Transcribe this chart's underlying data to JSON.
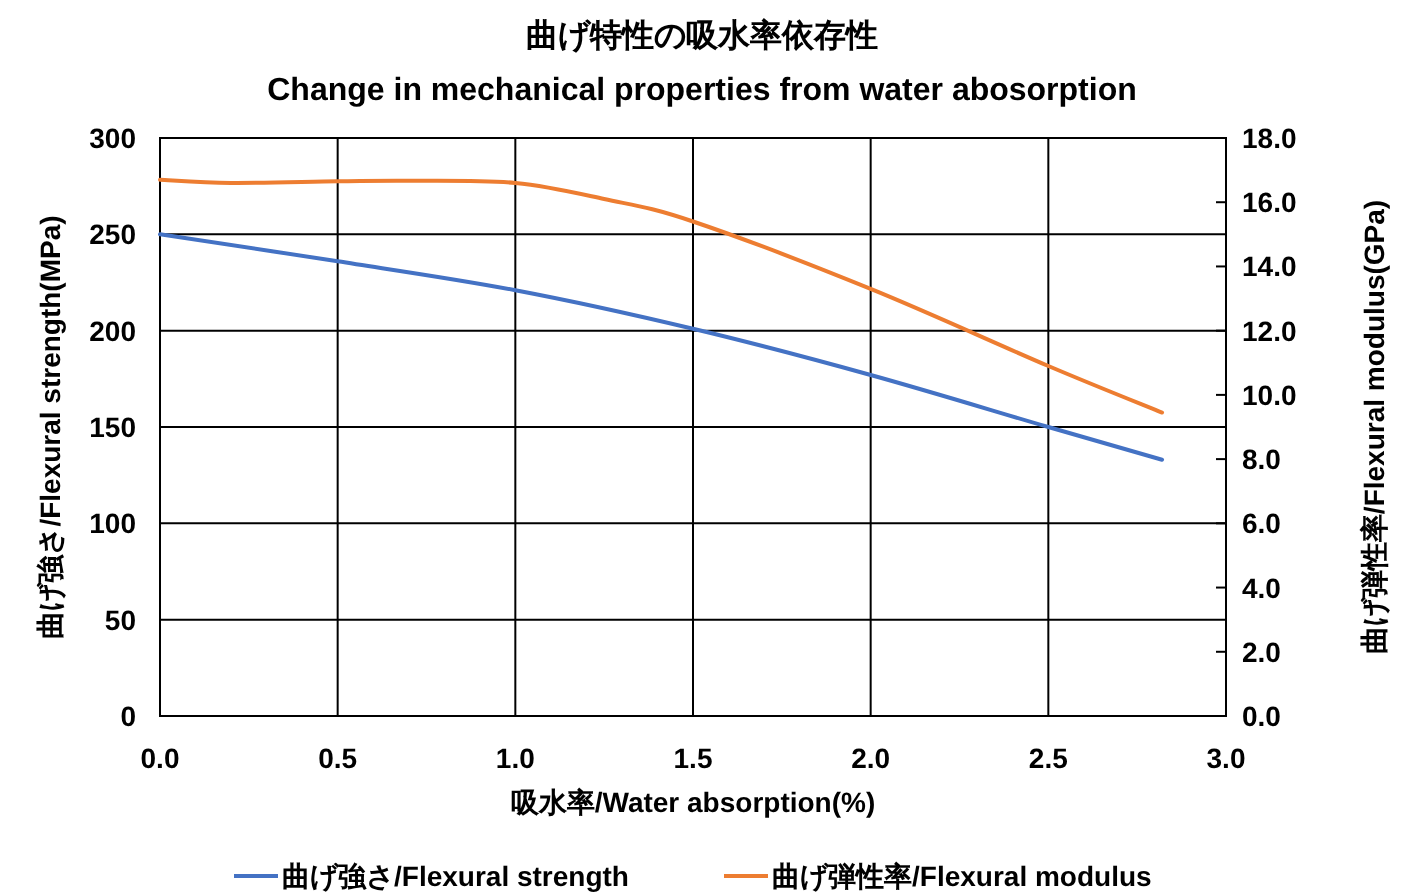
{
  "chart_data": {
    "type": "line",
    "title": "曲げ特性の吸水率依存性",
    "subtitle": "Change in mechanical properties from water abosorption",
    "xlabel": "吸水率/Water absorption(%)",
    "ylabel": "曲げ強さ/Flexural strength(MPa)",
    "y2label": "曲げ弾性率/Flexural modulus(GPa)",
    "xlim": [
      0,
      3
    ],
    "xticks": [
      {
        "value": 0,
        "label": "0.0"
      },
      {
        "value": 0.5,
        "label": "0.5"
      },
      {
        "value": 1,
        "label": "1.0"
      },
      {
        "value": 1.5,
        "label": "1.5"
      },
      {
        "value": 2,
        "label": "2.0"
      },
      {
        "value": 2.5,
        "label": "2.5"
      },
      {
        "value": 3,
        "label": "3.0"
      }
    ],
    "ylim": [
      0,
      300
    ],
    "yticks": [
      0,
      50,
      100,
      150,
      200,
      250,
      300
    ],
    "y2lim": [
      0,
      18
    ],
    "y2ticks": [
      {
        "value": 0,
        "label": "0.0"
      },
      {
        "value": 2,
        "label": "2.0"
      },
      {
        "value": 4,
        "label": "4.0"
      },
      {
        "value": 6,
        "label": "6.0"
      },
      {
        "value": 8,
        "label": "8.0"
      },
      {
        "value": 10,
        "label": "10.0"
      },
      {
        "value": 12,
        "label": "12.0"
      },
      {
        "value": 14,
        "label": "14.0"
      },
      {
        "value": 16,
        "label": "16.0"
      },
      {
        "value": 18,
        "label": "18.0"
      }
    ],
    "grid": true,
    "legend": "bottom",
    "marker": "none",
    "line_style": "solid",
    "series": [
      {
        "name": "曲げ強さ/Flexural strength",
        "color": "#4472c4",
        "x": [
          0,
          0.5,
          1,
          1.5,
          2,
          2.5,
          2.82
        ],
        "values": [
          250,
          236,
          221,
          201,
          177,
          150,
          133
        ]
      },
      {
        "name": "曲げ弾性率/Flexural modulus",
        "color": "#ed7d31",
        "axis": "y2",
        "x": [
          0,
          0.2,
          0.5,
          0.7,
          1,
          1.25,
          1.5,
          2,
          2.5,
          2.82
        ],
        "values": [
          16.7,
          16.6,
          16.65,
          16.67,
          16.6,
          16.1,
          15.4,
          13.3,
          10.9,
          9.45
        ]
      }
    ]
  }
}
